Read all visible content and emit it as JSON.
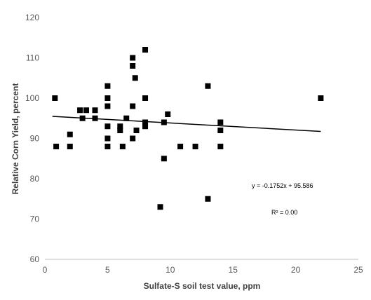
{
  "chart_data": {
    "type": "scatter",
    "xlabel": "Sulfate-S soil test value, ppm",
    "ylabel": "Relative Corn Yield, percent",
    "xlim": [
      0,
      25
    ],
    "ylim": [
      60,
      120
    ],
    "x_ticks": [
      0,
      5,
      10,
      15,
      20,
      25
    ],
    "y_ticks": [
      60,
      70,
      80,
      90,
      100,
      110,
      120
    ],
    "grid": false,
    "marker": "square",
    "marker_color": "#000000",
    "points": [
      {
        "x": 0.8,
        "y": 100
      },
      {
        "x": 0.9,
        "y": 88
      },
      {
        "x": 2.0,
        "y": 91
      },
      {
        "x": 2.0,
        "y": 88
      },
      {
        "x": 2.8,
        "y": 97
      },
      {
        "x": 3.0,
        "y": 95
      },
      {
        "x": 3.3,
        "y": 97
      },
      {
        "x": 4.0,
        "y": 97
      },
      {
        "x": 4.0,
        "y": 95
      },
      {
        "x": 5.0,
        "y": 103
      },
      {
        "x": 5.0,
        "y": 100
      },
      {
        "x": 5.0,
        "y": 98
      },
      {
        "x": 5.0,
        "y": 93
      },
      {
        "x": 5.0,
        "y": 90
      },
      {
        "x": 5.0,
        "y": 88
      },
      {
        "x": 6.0,
        "y": 93
      },
      {
        "x": 6.0,
        "y": 92
      },
      {
        "x": 6.2,
        "y": 88
      },
      {
        "x": 6.5,
        "y": 95
      },
      {
        "x": 7.0,
        "y": 110
      },
      {
        "x": 7.0,
        "y": 108
      },
      {
        "x": 7.0,
        "y": 98
      },
      {
        "x": 7.0,
        "y": 90
      },
      {
        "x": 7.2,
        "y": 105
      },
      {
        "x": 7.3,
        "y": 92
      },
      {
        "x": 8.0,
        "y": 112
      },
      {
        "x": 8.0,
        "y": 100
      },
      {
        "x": 8.0,
        "y": 94
      },
      {
        "x": 8.0,
        "y": 93
      },
      {
        "x": 9.2,
        "y": 73
      },
      {
        "x": 9.5,
        "y": 94
      },
      {
        "x": 9.5,
        "y": 85
      },
      {
        "x": 9.8,
        "y": 96
      },
      {
        "x": 10.8,
        "y": 88
      },
      {
        "x": 12.0,
        "y": 88
      },
      {
        "x": 13.0,
        "y": 103
      },
      {
        "x": 13.0,
        "y": 75
      },
      {
        "x": 14.0,
        "y": 94
      },
      {
        "x": 14.0,
        "y": 92
      },
      {
        "x": 14.0,
        "y": 88
      },
      {
        "x": 22.0,
        "y": 100
      }
    ],
    "trendline": {
      "type": "linear",
      "slope": -0.1752,
      "intercept": 95.586,
      "x_range": [
        0.6,
        22
      ]
    },
    "annotations": {
      "equation": "y = -0.1752x + 95.586",
      "r_squared": "R² = 0.00"
    }
  }
}
